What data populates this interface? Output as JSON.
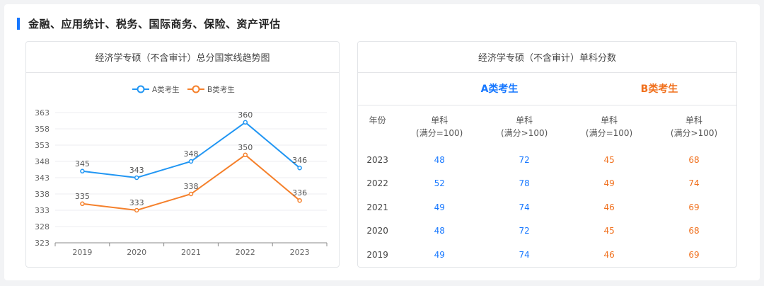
{
  "section": {
    "title": "金融、应用统计、税务、国际商务、保险、资产评估"
  },
  "colors": {
    "accent": "#1677ff",
    "series_a": "#2196f3",
    "series_b": "#f5802b"
  },
  "chart_data": {
    "type": "line",
    "title": "经济学专硕（不含审计）总分国家线趋势图",
    "x": [
      "2019",
      "2020",
      "2021",
      "2022",
      "2023"
    ],
    "ylim": [
      323,
      363
    ],
    "yticks": [
      323,
      328,
      333,
      338,
      343,
      348,
      353,
      358,
      363
    ],
    "legend": "top-center",
    "grid": true,
    "series": [
      {
        "name": "A类考生",
        "values": [
          345,
          343,
          348,
          360,
          346
        ]
      },
      {
        "name": "B类考生",
        "values": [
          335,
          333,
          338,
          350,
          336
        ]
      }
    ]
  },
  "table": {
    "title": "经济学专硕（不含审计）单科分数",
    "group_a": "A类考生",
    "group_b": "B类考生",
    "columns": [
      "年份",
      "单科",
      "(满分=100)",
      "(满分>100)"
    ],
    "rows": [
      {
        "year": "2023",
        "a1": "48",
        "a2": "72",
        "b1": "45",
        "b2": "68"
      },
      {
        "year": "2022",
        "a1": "52",
        "a2": "78",
        "b1": "49",
        "b2": "74"
      },
      {
        "year": "2021",
        "a1": "49",
        "a2": "74",
        "b1": "46",
        "b2": "69"
      },
      {
        "year": "2020",
        "a1": "48",
        "a2": "72",
        "b1": "45",
        "b2": "68"
      },
      {
        "year": "2019",
        "a1": "49",
        "a2": "74",
        "b1": "46",
        "b2": "69"
      }
    ]
  }
}
